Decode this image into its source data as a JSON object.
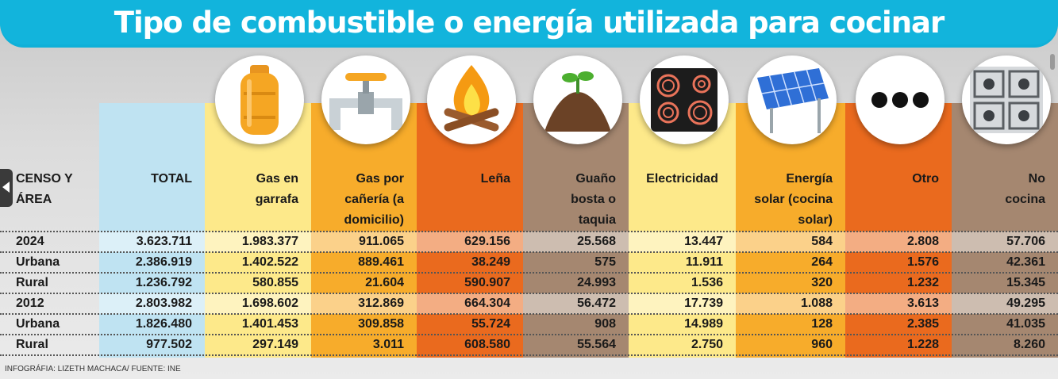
{
  "title": "Tipo de combustible o energía utilizada para cocinar",
  "footer": "INFOGRÁFIA: LIZETH MACHACA/ FUENTE: INE",
  "colors": {
    "banner": "#12b4dc",
    "total": "#bfe3f2",
    "garrafa": "#fde98a",
    "caneria": "#f7ac2b",
    "lena": "#ea6a1e",
    "guano": "#a58770",
    "electricidad": "#fde98a",
    "solar": "#f7ac2b",
    "otro": "#ea6a1e",
    "nococina": "#a58770"
  },
  "columns": [
    {
      "key": "area",
      "label_lines": [
        "CENSO Y",
        "ÁREA"
      ]
    },
    {
      "key": "total",
      "label_lines": [
        "TOTAL"
      ]
    },
    {
      "key": "garrafa",
      "label_lines": [
        "Gas en",
        "garrafa"
      ],
      "icon": "gas-cylinder-icon"
    },
    {
      "key": "caneria",
      "label_lines": [
        "Gas por",
        "cañería (a",
        "domicilio)"
      ],
      "icon": "gas-pipe-icon"
    },
    {
      "key": "lena",
      "label_lines": [
        "Leña"
      ],
      "icon": "campfire-icon"
    },
    {
      "key": "guano",
      "label_lines": [
        "Guaño",
        "bosta o",
        "taquia"
      ],
      "icon": "soil-sprout-icon"
    },
    {
      "key": "electricidad",
      "label_lines": [
        "Electricidad"
      ],
      "icon": "electric-stove-icon"
    },
    {
      "key": "solar",
      "label_lines": [
        "Energía",
        "solar (cocina",
        "solar)"
      ],
      "icon": "solar-panel-icon"
    },
    {
      "key": "otro",
      "label_lines": [
        "Otro"
      ],
      "icon": "ellipsis-icon"
    },
    {
      "key": "nococina",
      "label_lines": [
        "No",
        "cocina"
      ],
      "icon": "gas-stove-icon"
    }
  ],
  "chart_data": {
    "type": "table",
    "title": "Tipo de combustible o energía utilizada para cocinar",
    "rows": [
      {
        "area": "2024",
        "values": [
          "3.623.711",
          "1.983.377",
          "911.065",
          "629.156",
          "25.568",
          "13.447",
          "584",
          "2.808",
          "57.706"
        ]
      },
      {
        "area": "Urbana",
        "values": [
          "2.386.919",
          "1.402.522",
          "889.461",
          "38.249",
          "575",
          "11.911",
          "264",
          "1.576",
          "42.361"
        ]
      },
      {
        "area": "Rural",
        "values": [
          "1.236.792",
          "580.855",
          "21.604",
          "590.907",
          "24.993",
          "1.536",
          "320",
          "1.232",
          "15.345"
        ]
      },
      {
        "area": "2012",
        "values": [
          "2.803.982",
          "1.698.602",
          "312.869",
          "664.304",
          "56.472",
          "17.739",
          "1.088",
          "3.613",
          "49.295"
        ]
      },
      {
        "area": "Urbana",
        "values": [
          "1.826.480",
          "1.401.453",
          "309.858",
          "55.724",
          "908",
          "14.989",
          "128",
          "2.385",
          "41.035"
        ]
      },
      {
        "area": "Rural",
        "values": [
          "977.502",
          "297.149",
          "3.011",
          "608.580",
          "55.564",
          "2.750",
          "960",
          "1.228",
          "8.260"
        ]
      }
    ]
  }
}
